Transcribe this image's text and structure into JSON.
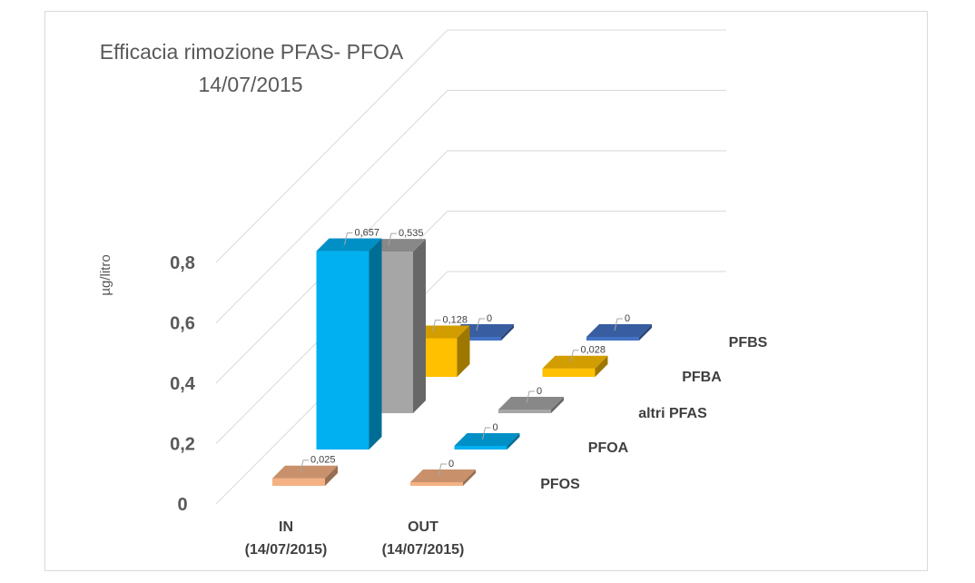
{
  "chart_data": {
    "type": "bar",
    "subtype": "3d-column",
    "title_line1": "Efficacia rimozione PFAS- PFOA",
    "title_line2": "14/07/2015",
    "ylabel": "µg/litro",
    "ylim": [
      0,
      0.8
    ],
    "yticks": [
      "0",
      "0,2",
      "0,4",
      "0,6",
      "0,8"
    ],
    "categories": [
      "IN\n(14/07/2015)",
      "OUT\n(14/07/2015)"
    ],
    "category_lines": [
      [
        "IN",
        "(14/07/2015)"
      ],
      [
        "OUT",
        "(14/07/2015)"
      ]
    ],
    "series": [
      {
        "name": "PFOS",
        "values": [
          0.025,
          0
        ],
        "labels": [
          "0,025",
          "0"
        ],
        "color": "#f4b183"
      },
      {
        "name": "PFOA",
        "values": [
          0.657,
          0
        ],
        "labels": [
          "0,657",
          "0"
        ],
        "color": "#00b0f0"
      },
      {
        "name": "altri PFAS",
        "values": [
          0.535,
          0
        ],
        "labels": [
          "0,535",
          "0"
        ],
        "color": "#a6a6a6"
      },
      {
        "name": "PFBA",
        "values": [
          0.128,
          0.028
        ],
        "labels": [
          "0,128",
          "0,028"
        ],
        "color": "#ffc000"
      },
      {
        "name": "PFBS",
        "values": [
          0,
          0
        ],
        "labels": [
          "0",
          "0"
        ],
        "color": "#4472c4"
      }
    ],
    "grid": true,
    "legend": "series labels on depth axis (right)"
  }
}
